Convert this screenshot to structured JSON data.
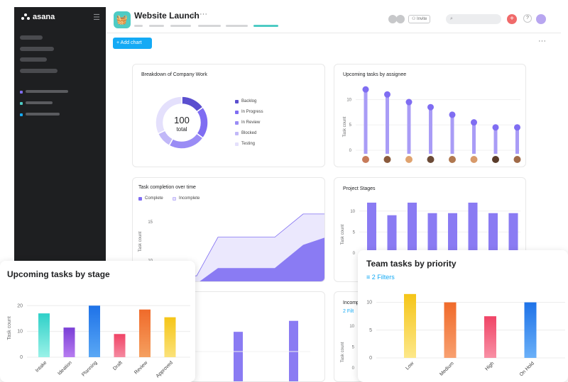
{
  "app": {
    "brand": "asana"
  },
  "sidebar": {
    "collapse_icon": "menu-collapse-icon"
  },
  "header": {
    "project_title": "Website Launch",
    "invite_label": "Invite",
    "add_chart_label": "Add chart",
    "star_icon": "star-icon",
    "more_icon": "more-icon"
  },
  "cards": {
    "breakdown": {
      "title": "Breakdown of Company Work",
      "total_value": "100",
      "total_label": "total",
      "legend": [
        "Backlog",
        "In Progress",
        "In Review",
        "Blocked",
        "Testing"
      ]
    },
    "upcoming_assignee": {
      "title": "Upcoming tasks by assignee",
      "ylabel": "Task count"
    },
    "completion": {
      "title": "Task completion over time",
      "legend": [
        "Complete",
        "Incomplete"
      ],
      "ylabel": "Task count"
    },
    "project_stages": {
      "title": "Project Stages",
      "ylabel": "Task count"
    },
    "incomplete_partial": {
      "title": "Incomp",
      "filters": "2 Filt"
    }
  },
  "overlays": {
    "stage": {
      "title": "Upcoming tasks by stage"
    },
    "priority": {
      "title": "Team tasks by priority",
      "filters_label": "2 Filters"
    }
  },
  "colors": {
    "sidebar": "#1e1f21",
    "accent": "#14aaf5",
    "teal": "#4ecbc4",
    "purple": "#7f6df2"
  },
  "chart_data": [
    {
      "type": "pie",
      "title": "Breakdown of Company Work",
      "categories": [
        "Backlog",
        "In Progress",
        "In Review",
        "Blocked",
        "Testing"
      ],
      "values": [
        15,
        20,
        23,
        10,
        32
      ]
    },
    {
      "type": "scatter",
      "title": "Upcoming tasks by assignee",
      "ylabel": "Task count",
      "values": [
        12,
        11,
        9.5,
        8.5,
        7,
        5.5,
        4.5,
        4.5
      ],
      "yticks": [
        "0",
        "5",
        "10"
      ],
      "ylim": [
        0,
        13
      ]
    },
    {
      "type": "area",
      "title": "Task completion over time",
      "ylabel": "Task count",
      "series": [
        {
          "name": "Complete",
          "values": [
            7,
            7,
            9,
            9,
            9,
            12,
            13
          ]
        },
        {
          "name": "Incomplete",
          "values": [
            8,
            8,
            13,
            13,
            13,
            16,
            16
          ]
        }
      ],
      "yticks": [
        "10",
        "15"
      ],
      "ylim": [
        6,
        17
      ]
    },
    {
      "type": "bar",
      "title": "Project Stages",
      "ylabel": "Task count",
      "values": [
        12,
        9,
        12,
        9.5,
        9.5,
        12,
        9.5,
        9.5
      ],
      "yticks": [
        "0",
        "5",
        "10"
      ],
      "ylim": [
        0,
        13
      ]
    },
    {
      "type": "bar",
      "title": "Upcoming tasks by stage",
      "ylabel": "Task count",
      "categories": [
        "Intake",
        "Ideation",
        "Planning",
        "Draft",
        "Review",
        "Approved"
      ],
      "values": [
        17,
        11.5,
        20,
        9,
        18.5,
        15.5
      ],
      "yticks": [
        "0",
        "10",
        "20"
      ],
      "ylim": [
        0,
        22
      ]
    },
    {
      "type": "bar",
      "title": "Team tasks by priority",
      "categories": [
        "Low",
        "Medium",
        "High",
        "On Hold"
      ],
      "values": [
        11.5,
        10,
        7.5,
        10
      ],
      "yticks": [
        "0",
        "5",
        "10"
      ],
      "ylim": [
        0,
        12.5
      ]
    },
    {
      "type": "bar",
      "title": "Incomp",
      "ylabel": "Task count",
      "values": [
        4.5,
        7
      ],
      "yticks": [
        "0",
        "5",
        "10"
      ],
      "ylim": [
        0,
        11
      ]
    }
  ]
}
